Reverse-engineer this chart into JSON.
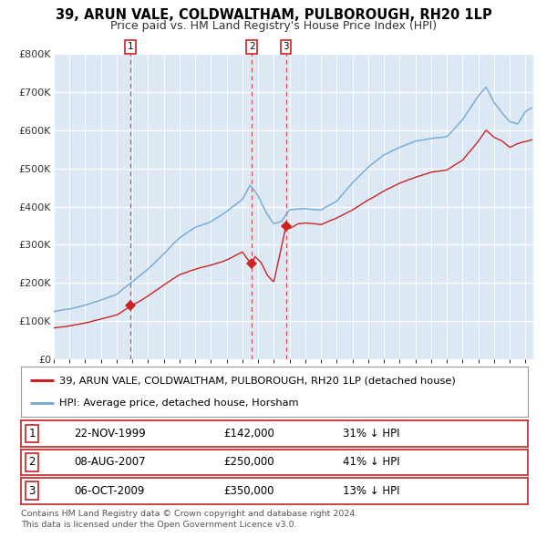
{
  "title": "39, ARUN VALE, COLDWALTHAM, PULBOROUGH, RH20 1LP",
  "subtitle": "Price paid vs. HM Land Registry's House Price Index (HPI)",
  "bg_color": "#dce9f5",
  "hpi_line_color": "#7aadd4",
  "price_line_color": "#cc2222",
  "ylim": [
    0,
    800000
  ],
  "yticks": [
    0,
    100000,
    200000,
    300000,
    400000,
    500000,
    600000,
    700000,
    800000
  ],
  "ytick_labels": [
    "£0",
    "£100K",
    "£200K",
    "£300K",
    "£400K",
    "£500K",
    "£600K",
    "£700K",
    "£800K"
  ],
  "xlim_start": 1995.0,
  "xlim_end": 2025.5,
  "sale1_date": 1999.896,
  "sale1_price": 142000,
  "sale1_label": "1",
  "sale2_date": 2007.596,
  "sale2_price": 250000,
  "sale2_label": "2",
  "sale3_date": 2009.764,
  "sale3_price": 350000,
  "sale3_label": "3",
  "legend_label1": "39, ARUN VALE, COLDWALTHAM, PULBOROUGH, RH20 1LP (detached house)",
  "legend_label2": "HPI: Average price, detached house, Horsham",
  "table_rows": [
    {
      "num": "1",
      "date": "22-NOV-1999",
      "price": "£142,000",
      "hpi": "31% ↓ HPI"
    },
    {
      "num": "2",
      "date": "08-AUG-2007",
      "price": "£250,000",
      "hpi": "41% ↓ HPI"
    },
    {
      "num": "3",
      "date": "06-OCT-2009",
      "price": "£350,000",
      "hpi": "13% ↓ HPI"
    }
  ],
  "footer": "Contains HM Land Registry data © Crown copyright and database right 2024.\nThis data is licensed under the Open Government Licence v3.0."
}
